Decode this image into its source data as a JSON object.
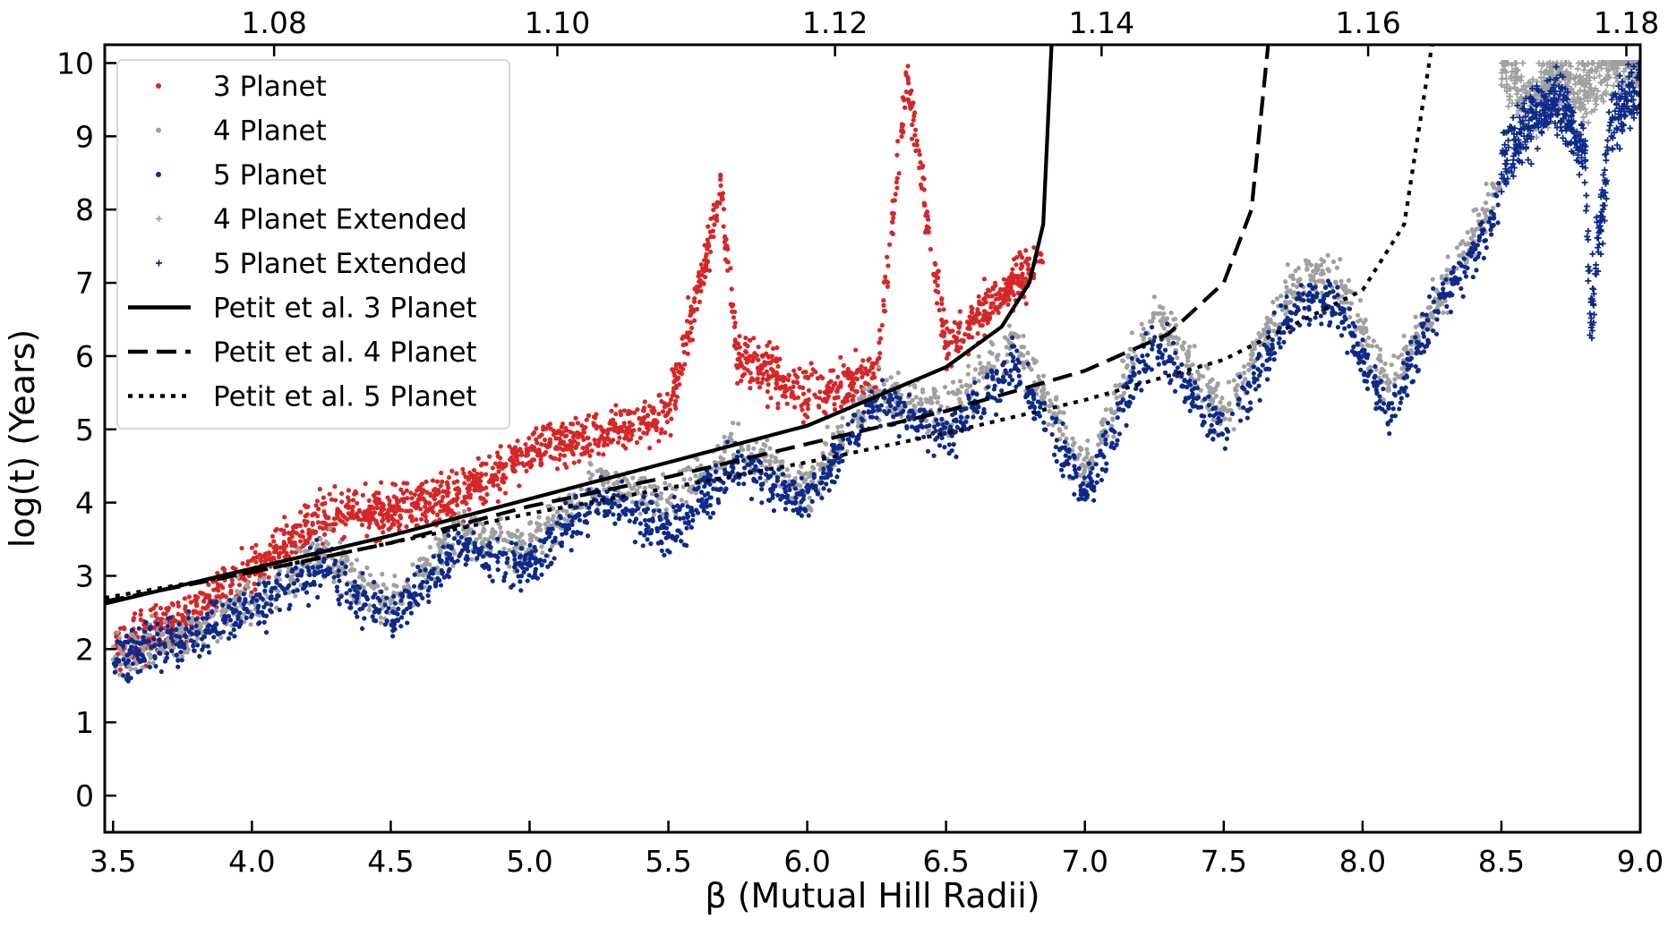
{
  "chart_data": {
    "type": "scatter",
    "title": "",
    "xlabel": "β (Mutual Hill Radii)",
    "ylabel": "log(t) (Years)",
    "xlim": [
      3.47,
      9.0
    ],
    "ylim": [
      -0.5,
      10.25
    ],
    "x_ticks": [
      "3.5",
      "4.0",
      "4.5",
      "5.0",
      "5.5",
      "6.0",
      "6.5",
      "7.0",
      "7.5",
      "8.0",
      "8.5",
      "9.0"
    ],
    "x_tick_values": [
      3.5,
      4.0,
      4.5,
      5.0,
      5.5,
      6.0,
      6.5,
      7.0,
      7.5,
      8.0,
      8.5,
      9.0
    ],
    "y_ticks": [
      "0",
      "1",
      "2",
      "3",
      "4",
      "5",
      "6",
      "7",
      "8",
      "9",
      "10"
    ],
    "y_tick_values": [
      0,
      1,
      2,
      3,
      4,
      5,
      6,
      7,
      8,
      9,
      10
    ],
    "top_axis": {
      "ticks": [
        "1.08",
        "1.10",
        "1.12",
        "1.14",
        "1.16",
        "1.18"
      ],
      "tick_beta_positions": [
        4.08,
        5.1,
        6.1,
        7.06,
        8.02,
        8.95
      ]
    },
    "grid": false,
    "legend_position": "upper-left",
    "series": [
      {
        "name": "3 Planet",
        "marker": "dot",
        "color": "#d62728",
        "x": [
          3.5,
          3.75,
          4.0,
          4.25,
          4.5,
          4.75,
          5.0,
          5.25,
          5.5,
          5.69,
          5.75,
          6.0,
          6.25,
          6.36,
          6.5,
          6.75,
          6.85
        ],
        "y": [
          2.0,
          2.4,
          3.1,
          3.8,
          3.9,
          4.1,
          4.7,
          4.9,
          5.2,
          8.2,
          6.0,
          5.5,
          5.7,
          9.8,
          6.1,
          7.0,
          7.3
        ]
      },
      {
        "name": "4 Planet",
        "marker": "dot",
        "color": "#a0a0a0",
        "x": [
          3.5,
          3.75,
          4.0,
          4.25,
          4.5,
          4.75,
          5.0,
          5.25,
          5.5,
          5.75,
          6.0,
          6.25,
          6.5,
          6.75,
          7.0,
          7.25,
          7.5,
          7.75,
          7.9,
          8.1,
          8.25,
          8.5
        ],
        "y": [
          1.9,
          2.2,
          2.7,
          3.3,
          2.6,
          3.6,
          3.4,
          4.3,
          4.0,
          4.8,
          4.2,
          5.5,
          5.2,
          6.2,
          4.4,
          6.6,
          5.2,
          7.0,
          7.1,
          5.6,
          6.6,
          8.4
        ]
      },
      {
        "name": "5 Planet",
        "marker": "dot",
        "color": "#0d2a8a",
        "x": [
          3.5,
          3.75,
          4.0,
          4.25,
          4.5,
          4.75,
          5.0,
          5.25,
          5.5,
          5.75,
          6.0,
          6.25,
          6.5,
          6.75,
          7.0,
          7.25,
          7.5,
          7.75,
          7.9,
          8.1,
          8.25,
          8.5
        ],
        "y": [
          1.9,
          2.1,
          2.6,
          3.1,
          2.4,
          3.4,
          3.1,
          4.1,
          3.6,
          4.5,
          4.0,
          5.4,
          4.9,
          5.9,
          4.1,
          6.2,
          4.9,
          6.7,
          6.8,
          5.2,
          6.5,
          8.1
        ]
      },
      {
        "name": "4 Planet Extended",
        "marker": "plus",
        "color": "#a0a0a0",
        "x": [
          8.5,
          8.6,
          8.7,
          8.8,
          8.9,
          9.0
        ],
        "y": [
          10.0,
          9.4,
          9.8,
          9.6,
          10.0,
          10.0
        ]
      },
      {
        "name": "5 Planet Extended",
        "marker": "plus",
        "color": "#0d2a8a",
        "x": [
          8.5,
          8.6,
          8.7,
          8.8,
          8.82,
          8.9,
          9.0
        ],
        "y": [
          8.6,
          9.2,
          9.5,
          8.8,
          6.5,
          9.3,
          9.7
        ]
      },
      {
        "name": "Petit et al. 3 Planet",
        "line": "solid",
        "color": "#000000",
        "x": [
          3.47,
          4.0,
          4.5,
          5.0,
          5.5,
          6.0,
          6.5,
          6.7,
          6.8,
          6.85,
          6.88
        ],
        "y": [
          2.62,
          3.1,
          3.55,
          4.05,
          4.55,
          5.05,
          5.85,
          6.4,
          7.0,
          7.8,
          10.25
        ]
      },
      {
        "name": "Petit et al. 4 Planet",
        "line": "dashed",
        "color": "#000000",
        "x": [
          3.47,
          4.0,
          4.5,
          5.0,
          5.5,
          6.0,
          6.5,
          7.0,
          7.3,
          7.5,
          7.6,
          7.66
        ],
        "y": [
          2.65,
          3.05,
          3.45,
          3.95,
          4.35,
          4.8,
          5.25,
          5.8,
          6.3,
          7.0,
          8.0,
          10.25
        ]
      },
      {
        "name": "Petit et al. 5 Planet",
        "line": "dotted",
        "color": "#000000",
        "x": [
          3.47,
          4.0,
          4.5,
          5.0,
          5.5,
          6.0,
          6.5,
          7.0,
          7.5,
          8.0,
          8.15,
          8.25
        ],
        "y": [
          2.7,
          3.05,
          3.45,
          3.85,
          4.2,
          4.55,
          4.95,
          5.4,
          5.95,
          6.9,
          7.8,
          10.25
        ]
      }
    ]
  }
}
